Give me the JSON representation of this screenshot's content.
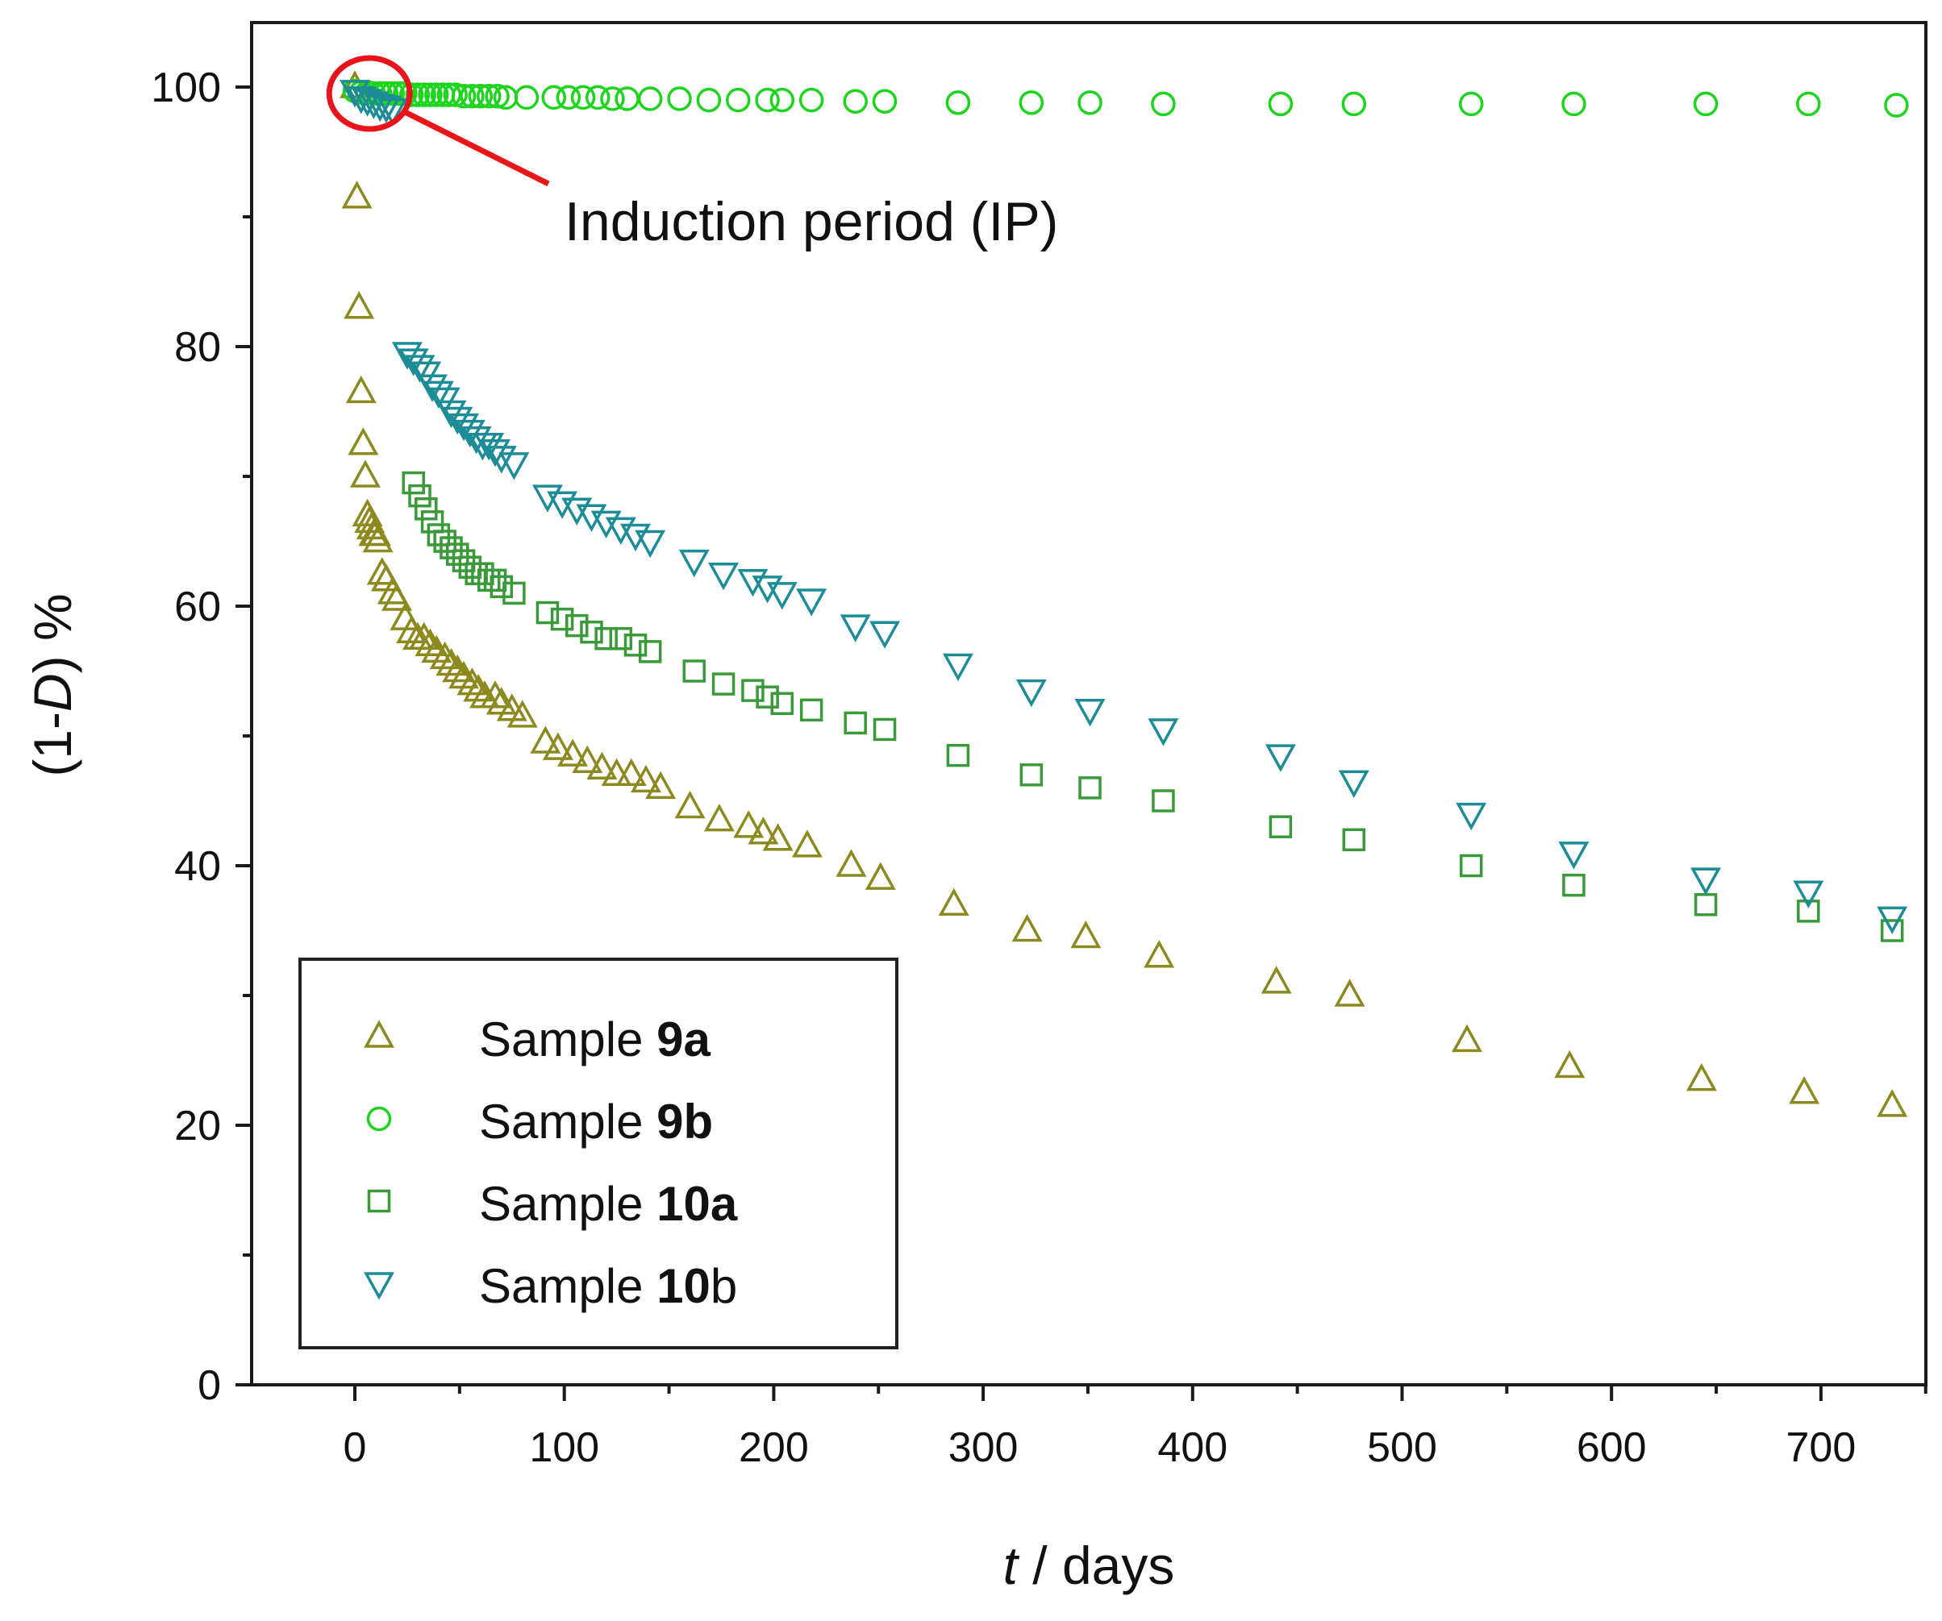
{
  "chart_data": {
    "type": "scatter",
    "title": "",
    "xlabel": {
      "italic": "t",
      "rest": " / days"
    },
    "ylabel": {
      "open": "(1-",
      "italic": "D",
      "close": ") %"
    },
    "xlim": [
      -50,
      750
    ],
    "ylim": [
      0,
      105
    ],
    "xticks": [
      0,
      100,
      200,
      300,
      400,
      500,
      600,
      700
    ],
    "yticks": [
      0,
      20,
      40,
      60,
      80,
      100
    ],
    "grid": false,
    "legend_position": "bottom-left",
    "annotation": {
      "text": "Induction period (IP)",
      "target_x": 7,
      "target_y": 99.5,
      "color": "#e8141c"
    },
    "series": [
      {
        "name": "Sample 9a",
        "label_prefix": "Sample ",
        "label_bold": "9a",
        "label_suffix": "",
        "marker": "triangle-up",
        "color": "#8c8a1e",
        "x": [
          0,
          1,
          2,
          3,
          4,
          5,
          6,
          7,
          8,
          9,
          10,
          11,
          13,
          15,
          18,
          20,
          24,
          27,
          30,
          33,
          36,
          39,
          43,
          46,
          49,
          52,
          56,
          59,
          62,
          67,
          70,
          75,
          80,
          91,
          97,
          104,
          111,
          118,
          125,
          132,
          139,
          146,
          160,
          174,
          188,
          195,
          202,
          216,
          237,
          251,
          286,
          321,
          349,
          384,
          440,
          475,
          531,
          580,
          643,
          692,
          734
        ],
        "y": [
          100,
          91.5,
          83,
          76.5,
          72.5,
          70,
          67,
          66.5,
          66,
          65.5,
          65.5,
          65,
          62.5,
          62,
          61,
          60.5,
          59,
          58,
          57.5,
          57.5,
          57,
          56.5,
          56,
          55.5,
          55,
          54.5,
          54,
          53.5,
          53,
          53,
          52.5,
          52,
          51.5,
          49.5,
          49,
          48.5,
          48,
          47.5,
          47,
          47,
          46.5,
          46,
          44.5,
          43.5,
          43,
          42.5,
          42,
          41.5,
          40,
          39,
          37,
          35,
          34.5,
          33,
          31,
          30,
          26.5,
          24.5,
          23.5,
          22.5,
          21.5
        ]
      },
      {
        "name": "Sample 9b",
        "label_prefix": "Sample ",
        "label_bold": "9b",
        "label_suffix": "",
        "marker": "circle",
        "color": "#1ed41e",
        "x": [
          0,
          3,
          6,
          9,
          12,
          15,
          18,
          21,
          24,
          27,
          30,
          33,
          36,
          39,
          42,
          45,
          48,
          52,
          56,
          60,
          64,
          68,
          72,
          82,
          95,
          102,
          109,
          116,
          123,
          130,
          141,
          155,
          169,
          183,
          197,
          204,
          218,
          239,
          253,
          288,
          323,
          351,
          386,
          442,
          477,
          533,
          582,
          645,
          694,
          736
        ],
        "y": [
          99.7,
          99.6,
          99.6,
          99.5,
          99.5,
          99.5,
          99.5,
          99.5,
          99.5,
          99.4,
          99.4,
          99.4,
          99.4,
          99.4,
          99.4,
          99.4,
          99.4,
          99.3,
          99.3,
          99.3,
          99.3,
          99.3,
          99.2,
          99.2,
          99.2,
          99.2,
          99.2,
          99.2,
          99.1,
          99.1,
          99.1,
          99.1,
          99.0,
          99.0,
          99.0,
          99.0,
          99.0,
          98.9,
          98.9,
          98.8,
          98.8,
          98.8,
          98.7,
          98.7,
          98.7,
          98.7,
          98.7,
          98.7,
          98.7,
          98.6
        ]
      },
      {
        "name": "Sample 10a",
        "label_prefix": "Sample ",
        "label_bold": "10a",
        "label_suffix": "",
        "marker": "square",
        "color": "#3a9a3a",
        "x": [
          28,
          31,
          34,
          37,
          40,
          43,
          46,
          49,
          52,
          55,
          58,
          61,
          64,
          67,
          70,
          76,
          92,
          99,
          106,
          113,
          120,
          127,
          134,
          141,
          162,
          176,
          190,
          197,
          204,
          218,
          239,
          253,
          288,
          323,
          351,
          386,
          442,
          477,
          533,
          582,
          645,
          694,
          734
        ],
        "y": [
          69.5,
          68.5,
          67.5,
          66.5,
          65.5,
          65,
          64.5,
          64,
          63.5,
          63,
          62.5,
          62.5,
          62,
          62,
          61.5,
          61,
          59.5,
          59,
          58.5,
          58,
          57.5,
          57.5,
          57,
          56.5,
          55,
          54,
          53.5,
          53,
          52.5,
          52,
          51,
          50.5,
          48.5,
          47,
          46,
          45,
          43,
          42,
          40,
          38.5,
          37,
          36.5,
          35
        ]
      },
      {
        "name": "Sample 10b",
        "label_prefix": "Sample ",
        "label_bold": "10",
        "label_suffix": "b",
        "marker": "triangle-down",
        "color": "#1c8c96",
        "x": [
          0,
          3,
          6,
          9,
          12,
          15,
          18,
          25,
          28,
          31,
          34,
          37,
          40,
          43,
          46,
          49,
          52,
          55,
          58,
          61,
          64,
          67,
          70,
          76,
          92,
          99,
          106,
          113,
          120,
          127,
          134,
          141,
          162,
          176,
          190,
          197,
          204,
          218,
          239,
          253,
          288,
          323,
          351,
          386,
          442,
          477,
          533,
          582,
          645,
          694,
          734
        ],
        "y": [
          99.7,
          99.2,
          99,
          98.8,
          98.6,
          98.5,
          98.3,
          79.5,
          79,
          78.5,
          78,
          77,
          76.5,
          76,
          75,
          74.5,
          74,
          73.5,
          73,
          72.5,
          72.5,
          72,
          71.5,
          71,
          68.5,
          68,
          67.5,
          67,
          66.5,
          66,
          65.5,
          65,
          63.5,
          62.5,
          62,
          61.5,
          61,
          60.5,
          58.5,
          58,
          55.5,
          53.5,
          52,
          50.5,
          48.5,
          46.5,
          44,
          41,
          39,
          38,
          36
        ]
      }
    ]
  }
}
